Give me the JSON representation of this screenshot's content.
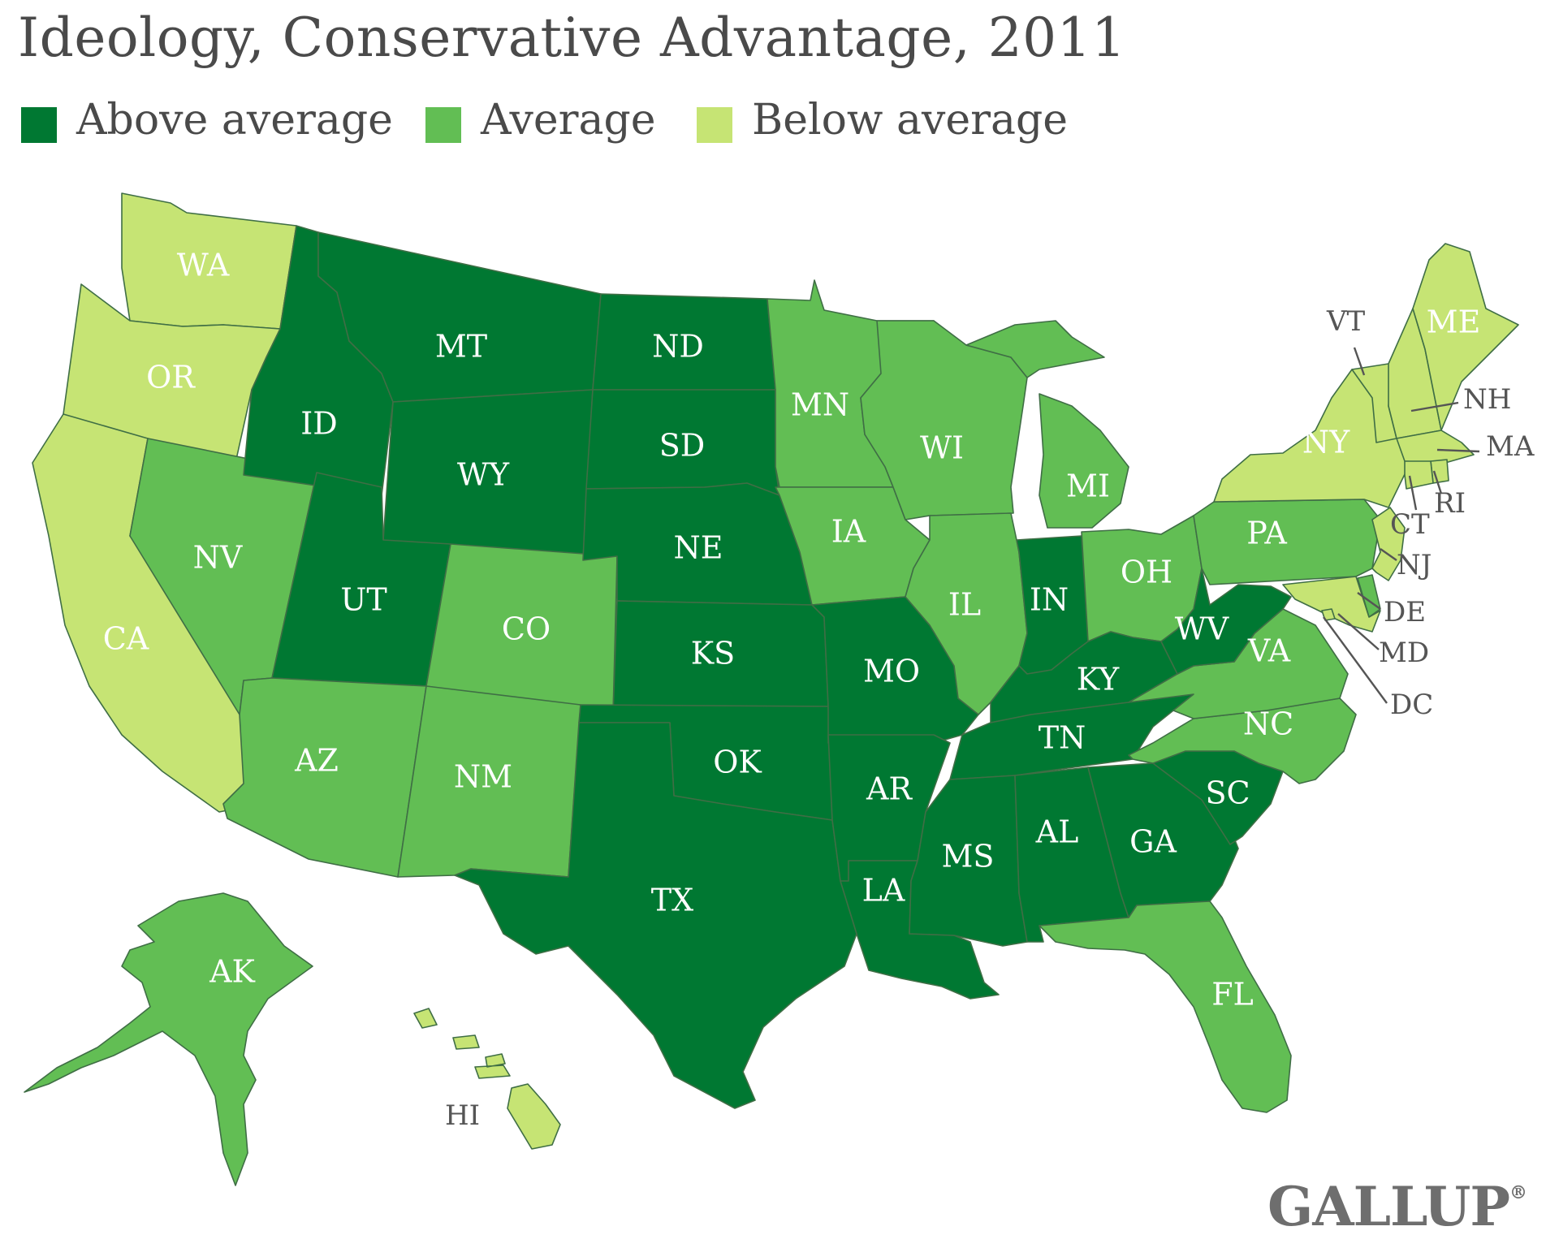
{
  "title": "Ideology, Conservative Advantage, 2011",
  "legend": [
    {
      "key": "above",
      "label": "Above average",
      "color": "#007832"
    },
    {
      "key": "average",
      "label": "Average",
      "color": "#62be54"
    },
    {
      "key": "below",
      "label": "Below average",
      "color": "#c6e474"
    }
  ],
  "regions": [
    {
      "abbr": "WA",
      "category": "below"
    },
    {
      "abbr": "OR",
      "category": "below"
    },
    {
      "abbr": "CA",
      "category": "below"
    },
    {
      "abbr": "NV",
      "category": "average"
    },
    {
      "abbr": "ID",
      "category": "above"
    },
    {
      "abbr": "MT",
      "category": "above"
    },
    {
      "abbr": "WY",
      "category": "above"
    },
    {
      "abbr": "UT",
      "category": "above"
    },
    {
      "abbr": "AZ",
      "category": "average"
    },
    {
      "abbr": "CO",
      "category": "average"
    },
    {
      "abbr": "NM",
      "category": "average"
    },
    {
      "abbr": "ND",
      "category": "above"
    },
    {
      "abbr": "SD",
      "category": "above"
    },
    {
      "abbr": "NE",
      "category": "above"
    },
    {
      "abbr": "KS",
      "category": "above"
    },
    {
      "abbr": "OK",
      "category": "above"
    },
    {
      "abbr": "TX",
      "category": "above"
    },
    {
      "abbr": "MN",
      "category": "average"
    },
    {
      "abbr": "IA",
      "category": "average"
    },
    {
      "abbr": "MO",
      "category": "above"
    },
    {
      "abbr": "AR",
      "category": "above"
    },
    {
      "abbr": "LA",
      "category": "above"
    },
    {
      "abbr": "WI",
      "category": "average"
    },
    {
      "abbr": "IL",
      "category": "average"
    },
    {
      "abbr": "MI",
      "category": "average"
    },
    {
      "abbr": "IN",
      "category": "above"
    },
    {
      "abbr": "OH",
      "category": "average"
    },
    {
      "abbr": "KY",
      "category": "above"
    },
    {
      "abbr": "TN",
      "category": "above"
    },
    {
      "abbr": "MS",
      "category": "above"
    },
    {
      "abbr": "AL",
      "category": "above"
    },
    {
      "abbr": "GA",
      "category": "above"
    },
    {
      "abbr": "FL",
      "category": "average"
    },
    {
      "abbr": "SC",
      "category": "above"
    },
    {
      "abbr": "NC",
      "category": "average"
    },
    {
      "abbr": "VA",
      "category": "average"
    },
    {
      "abbr": "WV",
      "category": "above"
    },
    {
      "abbr": "PA",
      "category": "average"
    },
    {
      "abbr": "NY",
      "category": "below"
    },
    {
      "abbr": "VT",
      "category": "below"
    },
    {
      "abbr": "NH",
      "category": "below"
    },
    {
      "abbr": "ME",
      "category": "below"
    },
    {
      "abbr": "MA",
      "category": "below"
    },
    {
      "abbr": "RI",
      "category": "below"
    },
    {
      "abbr": "CT",
      "category": "below"
    },
    {
      "abbr": "NJ",
      "category": "below"
    },
    {
      "abbr": "DE",
      "category": "average"
    },
    {
      "abbr": "MD",
      "category": "below"
    },
    {
      "abbr": "DC",
      "category": "below"
    },
    {
      "abbr": "AK",
      "category": "average"
    },
    {
      "abbr": "HI",
      "category": "below"
    }
  ],
  "logo": {
    "text": "GALLUP",
    "mark": "®"
  }
}
